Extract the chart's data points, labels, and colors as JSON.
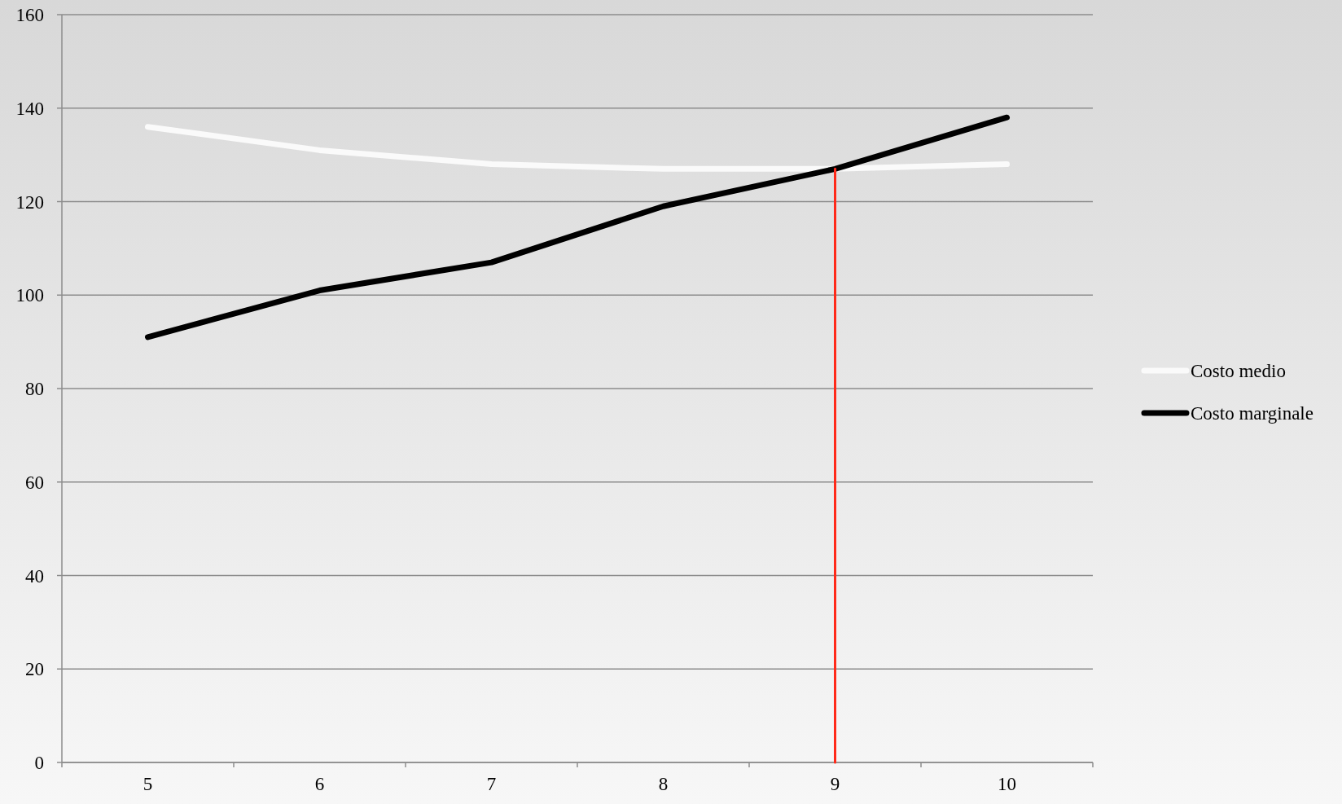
{
  "chart_data": {
    "type": "line",
    "categories": [
      "5",
      "6",
      "7",
      "8",
      "9",
      "10"
    ],
    "ylim": [
      0,
      160
    ],
    "yticks": [
      0,
      20,
      40,
      60,
      80,
      100,
      120,
      140,
      160
    ],
    "grid": "y",
    "legend": "right",
    "series": [
      {
        "name": "Costo medio",
        "color": "#fafafa",
        "values": [
          136,
          131,
          128,
          127,
          127,
          128
        ]
      },
      {
        "name": "Costo marginale",
        "color": "#000000",
        "values": [
          91,
          101,
          107,
          119,
          127,
          138
        ]
      },
      {
        "color": "#ff2a1a",
        "x": [
          "9",
          "9"
        ],
        "values": [
          0,
          127
        ]
      }
    ]
  }
}
